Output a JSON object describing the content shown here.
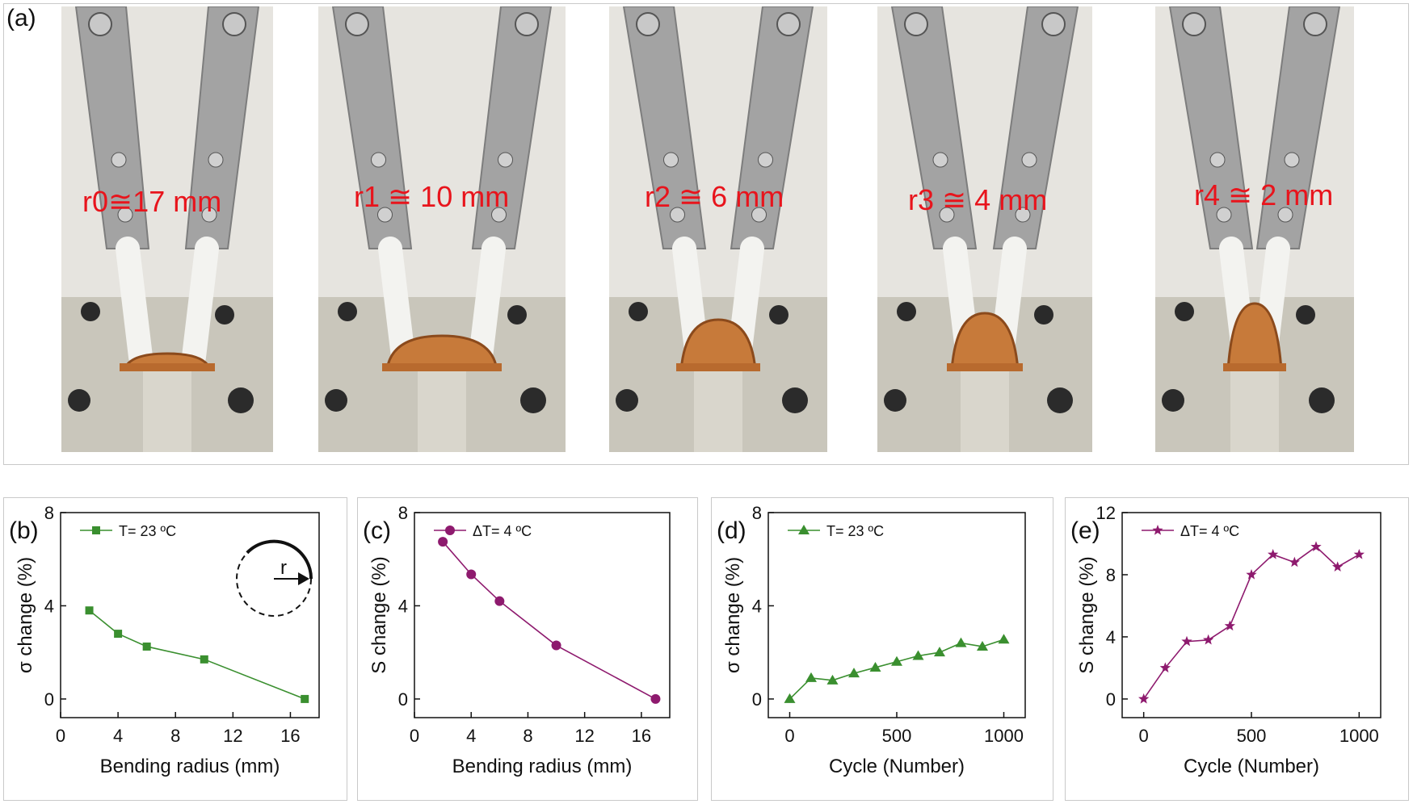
{
  "panel_a": {
    "letter": "(a)",
    "photos": [
      {
        "radius_label": "r0≅17 mm"
      },
      {
        "radius_label": "r1 ≅ 10 mm"
      },
      {
        "radius_label": "r2 ≅ 6 mm"
      },
      {
        "radius_label": "r3 ≅ 4 mm"
      },
      {
        "radius_label": "r4 ≅ 2 mm"
      }
    ]
  },
  "chart_data": [
    {
      "letter": "(b)",
      "type": "line",
      "xlabel": "Bending radius (mm)",
      "ylabel": "σ change (%)",
      "xlim": [
        0,
        18
      ],
      "ylim": [
        -0.8,
        8
      ],
      "xticks": [
        "0",
        "4",
        "8",
        "12",
        "16"
      ],
      "yticks": [
        "0",
        "4",
        "8"
      ],
      "inset_label": "r",
      "series": [
        {
          "name": "T= 23 ºC",
          "marker": "square",
          "color": "#3a8f2f",
          "x": [
            2,
            4,
            6,
            10,
            17
          ],
          "y": [
            3.8,
            2.8,
            2.25,
            1.7,
            0.0
          ]
        }
      ]
    },
    {
      "letter": "(c)",
      "type": "line",
      "xlabel": "Bending radius (mm)",
      "ylabel": "S change (%)",
      "xlim": [
        0,
        18
      ],
      "ylim": [
        -0.8,
        8
      ],
      "xticks": [
        "0",
        "4",
        "8",
        "12",
        "16"
      ],
      "yticks": [
        "0",
        "4",
        "8"
      ],
      "series": [
        {
          "name": "ΔT= 4 ºC",
          "marker": "circle",
          "color": "#8e1a6e",
          "x": [
            2,
            4,
            6,
            10,
            17
          ],
          "y": [
            6.75,
            5.35,
            4.2,
            2.3,
            0.0
          ]
        }
      ]
    },
    {
      "letter": "(d)",
      "type": "line",
      "xlabel": "Cycle (Number)",
      "ylabel": "σ change (%)",
      "xlim": [
        -100,
        1100
      ],
      "ylim": [
        -0.8,
        8
      ],
      "xticks": [
        "0",
        "500",
        "1000"
      ],
      "yticks": [
        "0",
        "4",
        "8"
      ],
      "series": [
        {
          "name": "T= 23 ºC",
          "marker": "triangle",
          "color": "#3a8f2f",
          "x": [
            0,
            100,
            200,
            300,
            400,
            500,
            600,
            700,
            800,
            900,
            1000
          ],
          "y": [
            0.0,
            0.9,
            0.8,
            1.1,
            1.35,
            1.6,
            1.85,
            2.0,
            2.4,
            2.25,
            2.55
          ]
        }
      ]
    },
    {
      "letter": "(e)",
      "type": "line",
      "xlabel": "Cycle (Number)",
      "ylabel": "S change (%)",
      "xlim": [
        -100,
        1100
      ],
      "ylim": [
        -1.2,
        12
      ],
      "xticks": [
        "0",
        "500",
        "1000"
      ],
      "yticks": [
        "0",
        "4",
        "8",
        "12"
      ],
      "series": [
        {
          "name": "ΔT= 4 ºC",
          "marker": "star",
          "color": "#8e1a6e",
          "x": [
            0,
            100,
            200,
            300,
            400,
            500,
            600,
            700,
            800,
            900,
            1000
          ],
          "y": [
            0.0,
            2.0,
            3.7,
            3.8,
            4.7,
            8.0,
            9.3,
            8.8,
            9.8,
            8.5,
            9.3
          ]
        }
      ]
    }
  ]
}
